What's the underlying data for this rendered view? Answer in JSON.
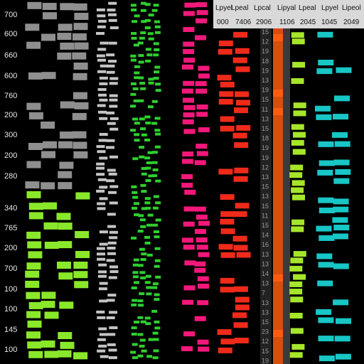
{
  "chart_data": {
    "type": "heatmap",
    "title": "",
    "row_labels": [
      "700",
      "600",
      "660",
      "600",
      "760",
      "200",
      "300",
      "200",
      "280",
      "340",
      "765",
      "200",
      "700",
      "100",
      "100",
      "145",
      "100"
    ],
    "header_titles": [
      "Lpyel",
      "Lpeal",
      "Lpcal",
      "Lipyal",
      "Lpeal",
      "Lpyel",
      "Lipeol"
    ],
    "header_numbers": [
      "000",
      "7406",
      "2906",
      "1106",
      "2045",
      "1045",
      "2049"
    ],
    "index_numbers": [
      "15",
      "12",
      "19",
      "18",
      "19",
      "13",
      "19",
      "15",
      "11",
      "13",
      "15",
      "18",
      "19",
      "19",
      "12",
      "13",
      "15",
      "13",
      "15",
      "11",
      "15",
      "14",
      "16",
      "13",
      "13",
      "14",
      "13",
      "7",
      "13",
      "13",
      "15",
      "23",
      "12",
      "15",
      "19"
    ],
    "colors": {
      "background": "#000000",
      "gray": "#8f8f8f",
      "lightgray": "#c4c4c4",
      "lime": "#8ae82a",
      "green": "#2fcf2f",
      "pink": "#f2187a",
      "red": "#f02a1a",
      "orange": "#ff5a12",
      "yellowgreen": "#a6e62a",
      "teal": "#18c6c6",
      "header": "#d9d9d9",
      "strip": "#3a3a3a"
    }
  }
}
